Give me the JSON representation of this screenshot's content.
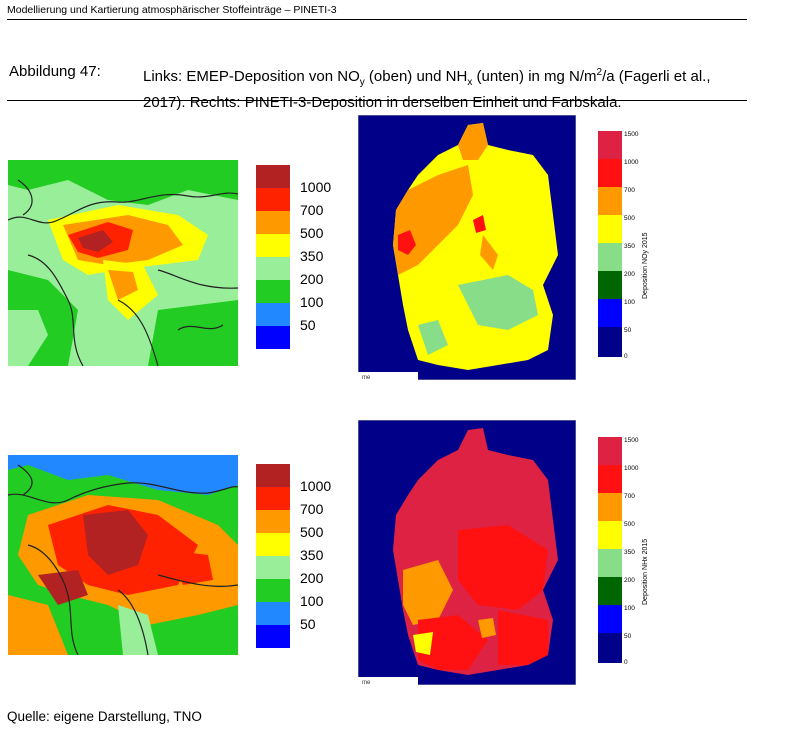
{
  "header": {
    "running_title": "Modellierung und Kartierung atmosphärischer Stoffeinträge – PINETI-3"
  },
  "caption": {
    "label": "Abbildung 47:",
    "line1": "Links: EMEP-Deposition von NO",
    "sub_y": "y",
    "mid1": " (oben) und NH",
    "sub_x": "x",
    "mid2": " (unten) in mg N/m",
    "sup2": "2",
    "mid3": "/a (Fagerli et al.,",
    "line2": "2017). Rechts: PINETI-3-Deposition in derselben Einheit und Farbskala."
  },
  "emep_legend": {
    "labels": [
      "1000",
      "700",
      "500",
      "350",
      "200",
      "100",
      "50"
    ],
    "colors": [
      "#b22222",
      "#ff2200",
      "#ff9900",
      "#ffff00",
      "#99ee99",
      "#22cc22",
      "#2288ff",
      "#0000ff"
    ]
  },
  "pineti_legend_top": {
    "labels": [
      "1500",
      "1000",
      "700",
      "500",
      "350",
      "200",
      "100",
      "50",
      "0"
    ],
    "title": "Deposition NOy 2015"
  },
  "pineti_legend_bottom": {
    "labels": [
      "1500",
      "1000",
      "700",
      "500",
      "350",
      "200",
      "100",
      "50",
      "0"
    ],
    "title": "Deposition NHx 2015"
  },
  "pineti_colors": [
    "#dd2244",
    "#ff1111",
    "#ff9900",
    "#ffff00",
    "#88dd88",
    "#006600",
    "#0000ff",
    "#000088"
  ],
  "map_footer": "me",
  "source": "Quelle: eigene Darstellung, TNO"
}
